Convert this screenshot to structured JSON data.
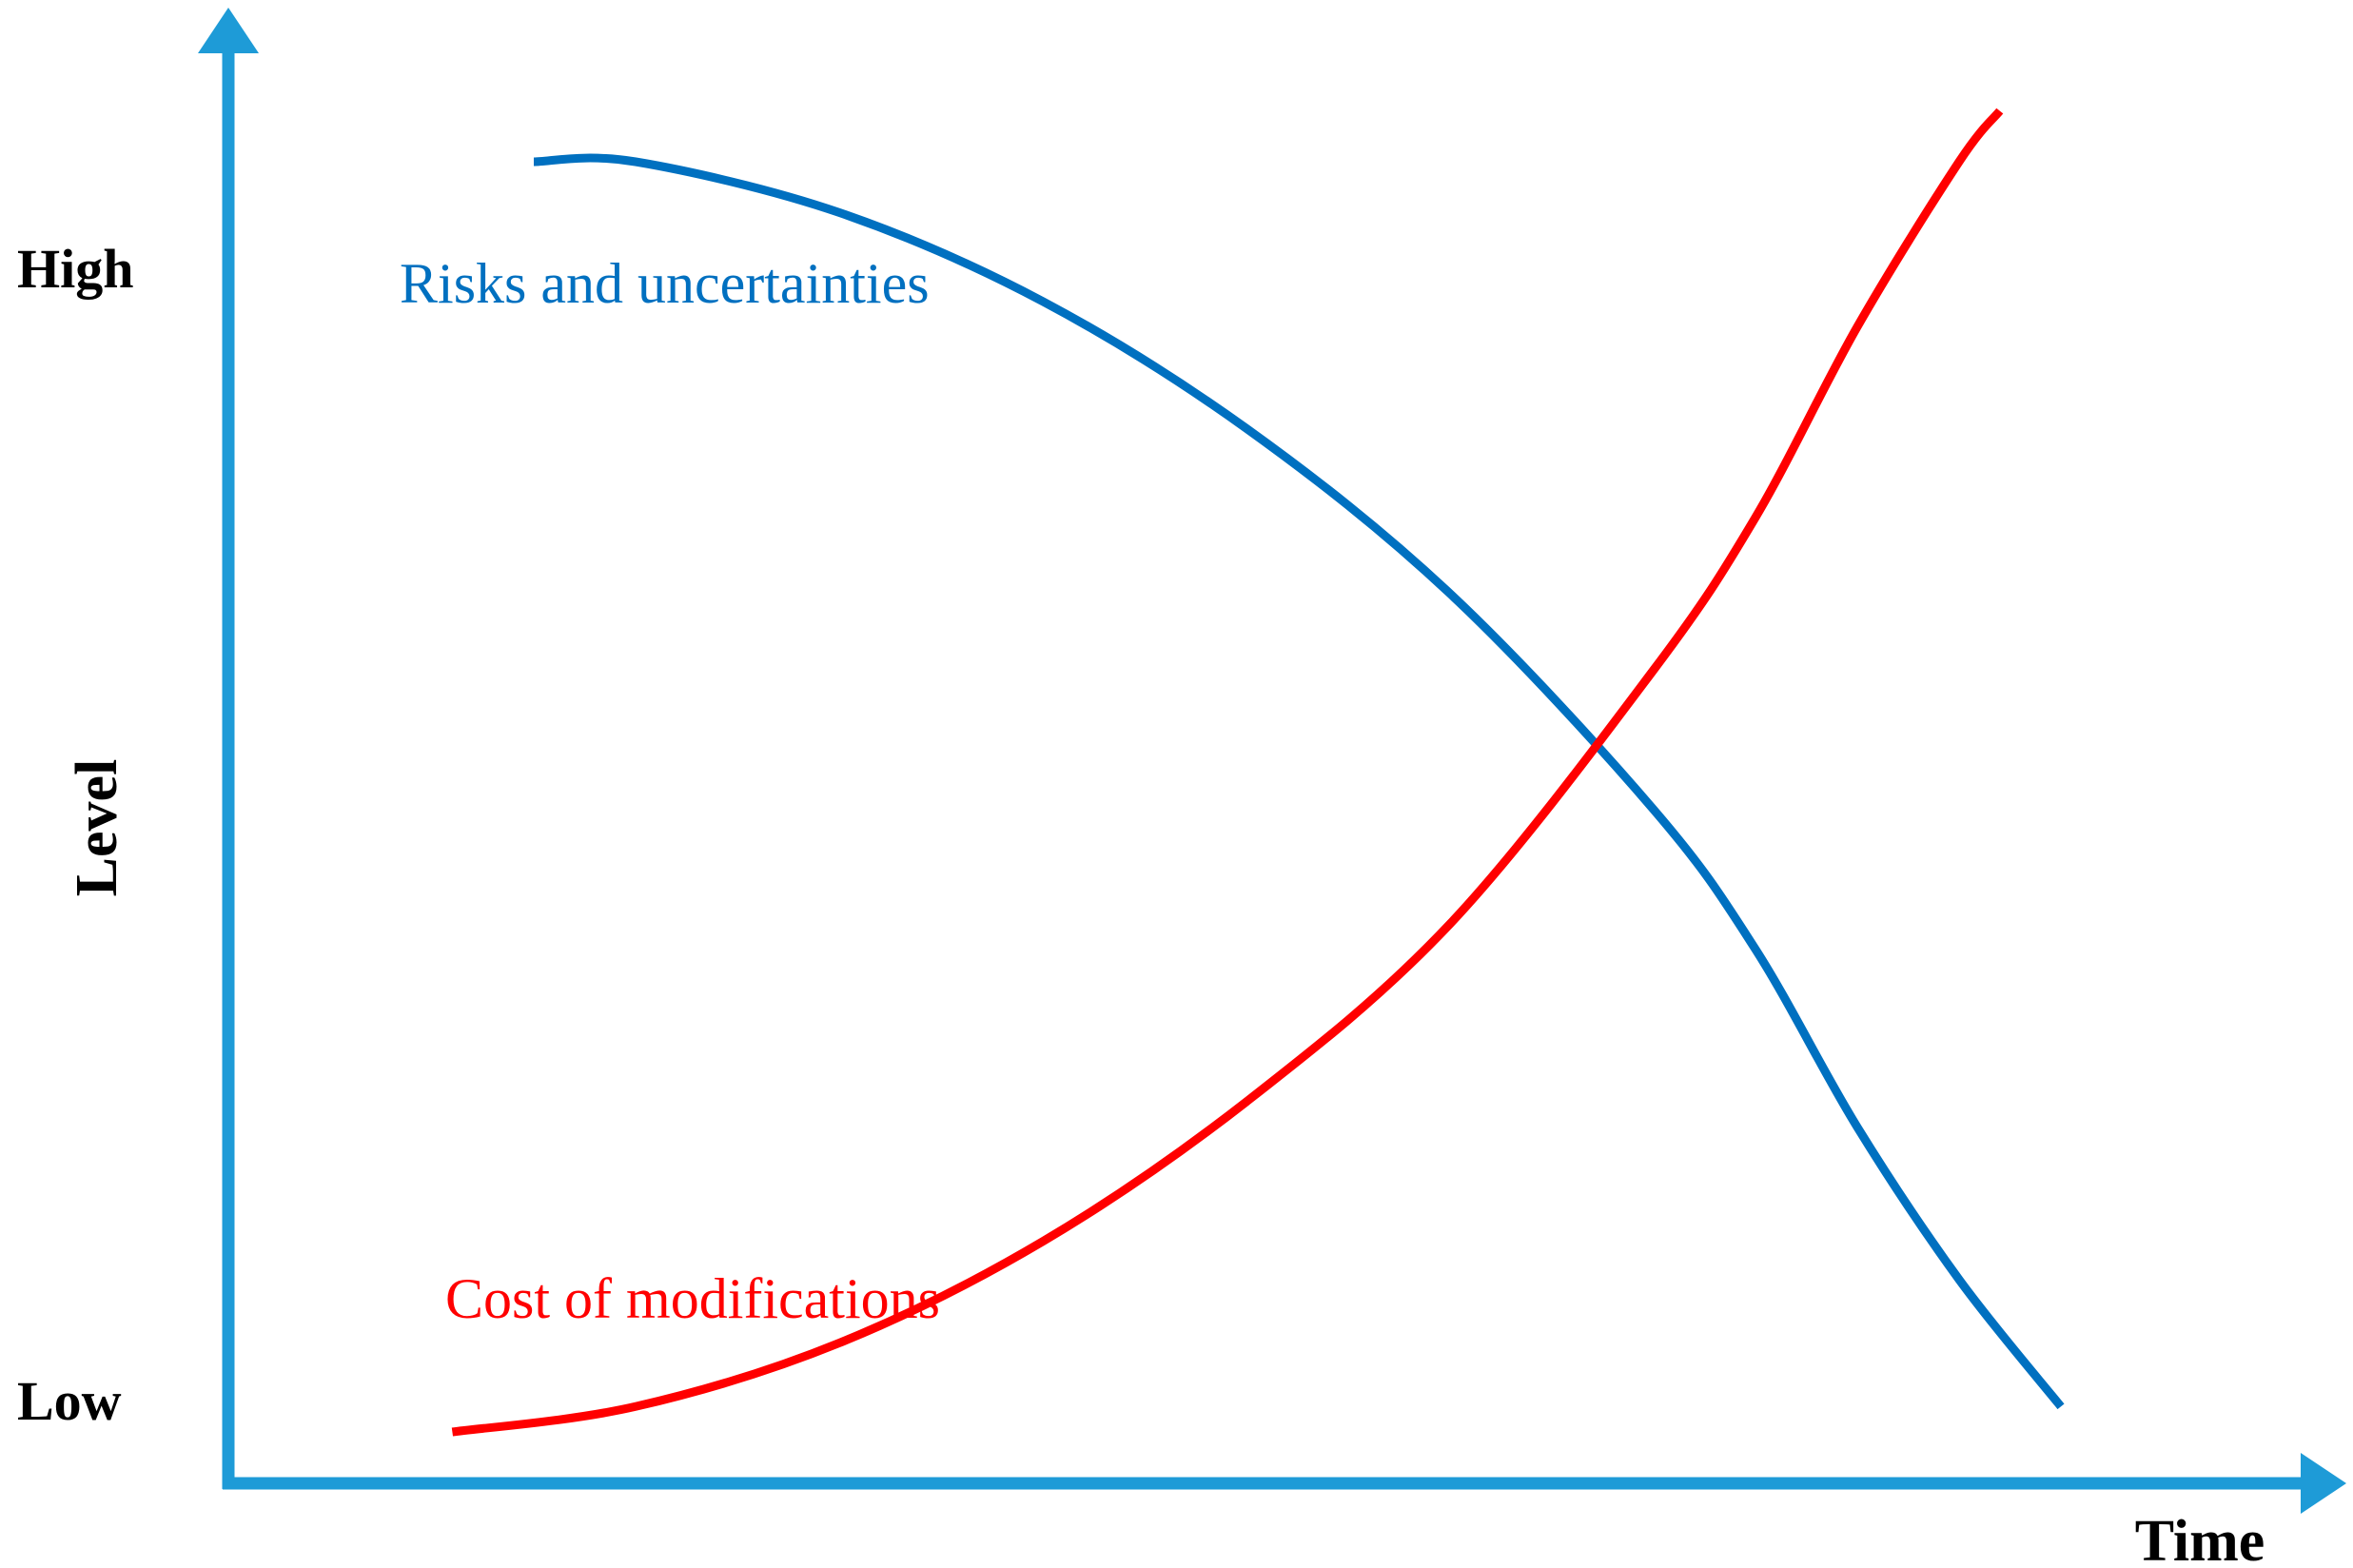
{
  "chart_data": {
    "type": "line",
    "title": "",
    "xlabel": "Time",
    "ylabel": "Level",
    "y_tick_labels": {
      "high": "High",
      "low": "Low"
    },
    "xlim": [
      0,
      1
    ],
    "ylim": [
      0,
      1
    ],
    "grid": false,
    "legend": "none (series labelled directly on the plot)",
    "series": [
      {
        "name": "Risks and uncertainties",
        "color": "#0070C0",
        "x": [
          0.15,
          0.2,
          0.3,
          0.4,
          0.5,
          0.6,
          0.7,
          0.75,
          0.8,
          0.85,
          0.9
        ],
        "y": [
          1.0,
          1.0,
          0.96,
          0.89,
          0.79,
          0.66,
          0.49,
          0.38,
          0.24,
          0.12,
          0.02
        ]
      },
      {
        "name": "Cost of modifications",
        "color": "#FF0000",
        "x": [
          0.11,
          0.2,
          0.3,
          0.4,
          0.5,
          0.6,
          0.7,
          0.75,
          0.8,
          0.85,
          0.87
        ],
        "y": [
          0.0,
          0.02,
          0.07,
          0.15,
          0.26,
          0.4,
          0.6,
          0.72,
          0.87,
          1.0,
          1.04
        ]
      }
    ],
    "axis_color": "#1E9BD7"
  }
}
